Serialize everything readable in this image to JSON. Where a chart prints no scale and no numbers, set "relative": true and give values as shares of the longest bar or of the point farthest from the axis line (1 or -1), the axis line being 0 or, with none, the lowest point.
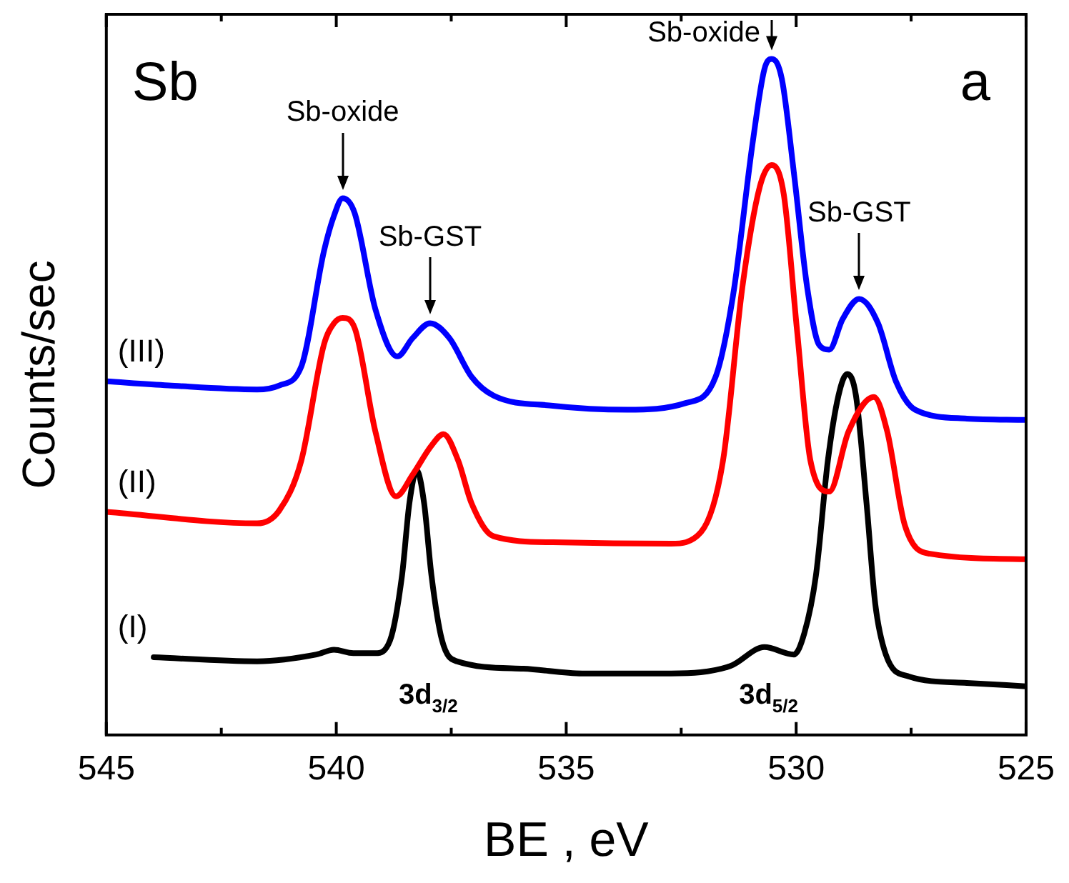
{
  "chart_data": {
    "type": "line",
    "xlabel": "BE , eV",
    "ylabel": "Counts/sec",
    "relative": true,
    "legend": false,
    "grid": false,
    "marker": "none",
    "line_style": "solid",
    "xlim": [
      545,
      525
    ],
    "xticks": [
      545,
      {
        "value": 542.5,
        "label": null
      },
      540,
      {
        "value": 537.5,
        "label": null
      },
      535,
      {
        "value": 532.5,
        "label": null
      },
      530,
      {
        "value": 527.5,
        "label": null
      },
      525
    ],
    "series": [
      {
        "name": "(III)",
        "color": "#0000ff",
        "x": [
          545,
          543.65,
          541.72,
          541.24,
          540.76,
          540.27,
          540.05,
          539.86,
          539.6,
          539.15,
          538.67,
          538.34,
          537.96,
          537.54,
          537.06,
          536.58,
          535.29,
          533.68,
          532.4,
          531.75,
          531.37,
          530.95,
          530.69,
          530.53,
          530.31,
          530.05,
          529.76,
          529.5,
          529.28,
          528.99,
          528.63,
          528.22,
          527.83,
          527.41,
          526.29,
          525
        ],
        "values": [
          0.523,
          0.517,
          0.511,
          0.517,
          0.545,
          0.715,
          0.768,
          0.794,
          0.772,
          0.63,
          0.56,
          0.587,
          0.609,
          0.587,
          0.53,
          0.502,
          0.487,
          0.481,
          0.491,
          0.53,
          0.651,
          0.874,
          0.985,
          1,
          0.97,
          0.832,
          0.662,
          0.577,
          0.57,
          0.615,
          0.645,
          0.609,
          0.523,
          0.481,
          0.468,
          0.466
        ]
      },
      {
        "name": "(II)",
        "color": "#ff0000",
        "x": [
          545,
          541.72,
          541.24,
          540.76,
          540.27,
          540.05,
          539.86,
          539.6,
          539.15,
          538.7,
          538.34,
          537.93,
          537.67,
          537.35,
          537.06,
          536.58,
          535.29,
          532.72,
          532.07,
          531.59,
          531.17,
          530.79,
          530.53,
          530.27,
          529.98,
          529.69,
          529.28,
          528.86,
          528.31,
          528.02,
          527.64,
          527.09,
          525
        ],
        "values": [
          0.33,
          0.313,
          0.332,
          0.406,
          0.577,
          0.609,
          0.617,
          0.602,
          0.449,
          0.353,
          0.385,
          0.428,
          0.445,
          0.406,
          0.343,
          0.294,
          0.285,
          0.283,
          0.3,
          0.406,
          0.662,
          0.811,
          0.843,
          0.8,
          0.598,
          0.406,
          0.36,
          0.449,
          0.5,
          0.449,
          0.311,
          0.268,
          0.26
        ]
      },
      {
        "name": "(I)",
        "color": "#000000",
        "x": [
          543.97,
          541.72,
          540.43,
          540.05,
          539.63,
          539.15,
          538.83,
          538.57,
          538.41,
          538.25,
          538.09,
          537.93,
          537.7,
          537.38,
          535.93,
          534.65,
          532.72,
          531.43,
          530.69,
          530.05,
          529.82,
          529.57,
          529.31,
          529.08,
          528.89,
          528.7,
          528.47,
          528.28,
          528.05,
          527.57,
          526.29,
          525
        ],
        "values": [
          0.115,
          0.109,
          0.119,
          0.126,
          0.121,
          0.121,
          0.14,
          0.236,
          0.343,
          0.391,
          0.343,
          0.236,
          0.14,
          0.109,
          0.098,
          0.091,
          0.091,
          0.102,
          0.13,
          0.119,
          0.151,
          0.236,
          0.406,
          0.502,
          0.534,
          0.502,
          0.343,
          0.194,
          0.119,
          0.087,
          0.077,
          0.072
        ]
      }
    ],
    "annotations": [
      "Sb",
      "a",
      {
        "text": "Sb-oxide",
        "x": 539.86,
        "y": 0.794
      },
      {
        "text": "Sb-GST",
        "x": 537.96,
        "y": 0.609
      },
      {
        "text": "Sb-oxide",
        "x": 530.53,
        "y": 1
      },
      {
        "text": "Sb-GST",
        "x": 528.63,
        "y": 0.645
      },
      "3d$_{3/2}$",
      "3d$_{5/2}$"
    ]
  }
}
